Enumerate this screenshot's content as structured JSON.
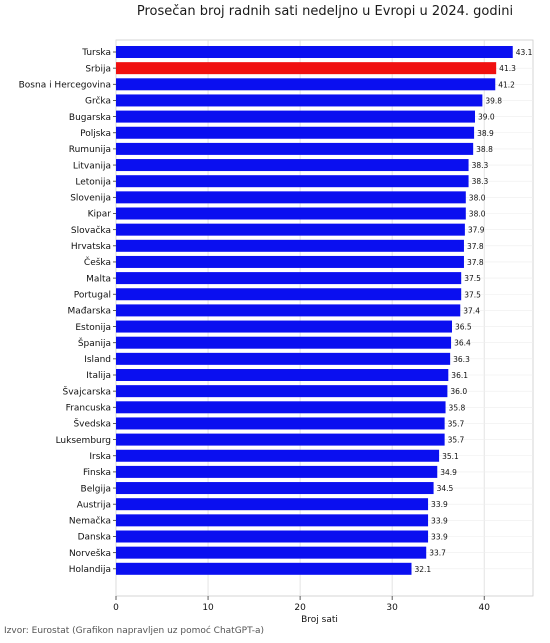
{
  "chart_data": {
    "type": "bar",
    "orientation": "horizontal",
    "title": "Prosečan broj radnih sati nedeljno u Evropi u 2024. godini",
    "xlabel": "Broj sati",
    "ylabel": "",
    "xlim": [
      0,
      45.3
    ],
    "xticks": [
      0,
      10,
      20,
      30,
      40
    ],
    "grid": "vertical",
    "colors": {
      "default": "#0a0ff0",
      "highlight": "#f01010",
      "highlight_category": "Srbija"
    },
    "categories": [
      "Turska",
      "Srbija",
      "Bosna i Hercegovina",
      "Grčka",
      "Bugarska",
      "Poljska",
      "Rumunija",
      "Litvanija",
      "Letonija",
      "Slovenija",
      "Kipar",
      "Slovačka",
      "Hrvatska",
      "Češka",
      "Malta",
      "Portugal",
      "Mađarska",
      "Estonija",
      "Španija",
      "Island",
      "Italija",
      "Švajcarska",
      "Francuska",
      "Švedska",
      "Luksemburg",
      "Irska",
      "Finska",
      "Belgija",
      "Austrija",
      "Nemačka",
      "Danska",
      "Norveška",
      "Holandija"
    ],
    "values": [
      43.1,
      41.3,
      41.2,
      39.8,
      39.0,
      38.9,
      38.8,
      38.3,
      38.3,
      38.0,
      38.0,
      37.9,
      37.8,
      37.8,
      37.5,
      37.5,
      37.4,
      36.5,
      36.4,
      36.3,
      36.1,
      36.0,
      35.8,
      35.7,
      35.7,
      35.1,
      34.9,
      34.5,
      33.9,
      33.9,
      33.9,
      33.7,
      32.1
    ],
    "value_labels": [
      "43.1",
      "41.3",
      "41.2",
      "39.8",
      "39.0",
      "38.9",
      "38.8",
      "38.3",
      "38.3",
      "38.0",
      "38.0",
      "37.9",
      "37.8",
      "37.8",
      "37.5",
      "37.5",
      "37.4",
      "36.5",
      "36.4",
      "36.3",
      "36.1",
      "36.0",
      "35.8",
      "35.7",
      "35.7",
      "35.1",
      "34.9",
      "34.5",
      "33.9",
      "33.9",
      "33.9",
      "33.7",
      "32.1"
    ]
  },
  "footer": {
    "source": "Izvor: Eurostat (Grafikon napravljen uz pomoć ChatGPT-a)"
  }
}
